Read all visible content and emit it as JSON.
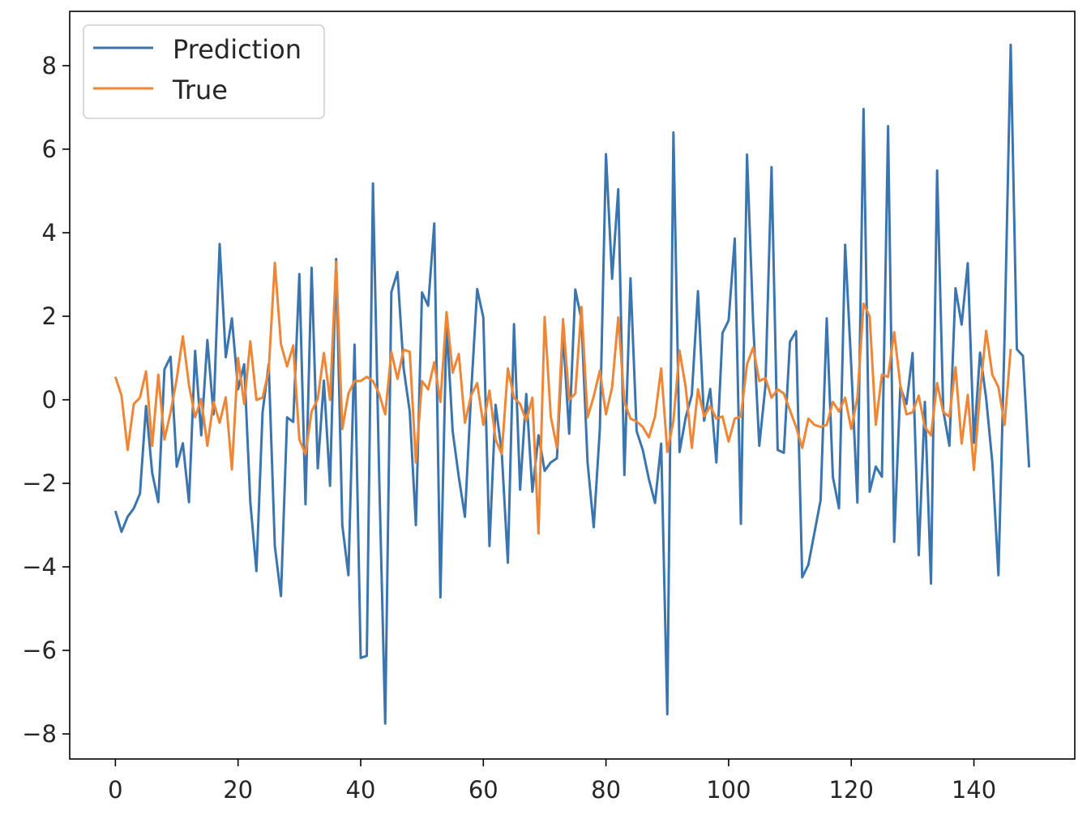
{
  "chart_data": {
    "type": "line",
    "title": "",
    "xlabel": "",
    "ylabel": "",
    "xlim": [
      -7.45,
      156.45
    ],
    "ylim": [
      -8.6,
      9.3
    ],
    "xticks": [
      0,
      20,
      40,
      60,
      80,
      100,
      120,
      140
    ],
    "yticks": [
      -8,
      -6,
      -4,
      -2,
      0,
      2,
      4,
      6,
      8
    ],
    "grid": false,
    "legend_position": "top-left",
    "series": [
      {
        "name": "Prediction",
        "color": "#3a75af",
        "values": [
          -2.66,
          -3.16,
          -2.8,
          -2.6,
          -2.25,
          -0.15,
          -1.75,
          -2.45,
          0.73,
          1.03,
          -1.6,
          -1.04,
          -2.45,
          1.17,
          -0.85,
          1.43,
          -0.35,
          3.73,
          1.02,
          1.95,
          0.25,
          0.85,
          -2.45,
          -4.1,
          -0.3,
          0.85,
          -3.5,
          -4.7,
          -0.42,
          -0.53,
          3.01,
          -2.5,
          3.16,
          -1.64,
          0.46,
          -2.06,
          3.37,
          -3.0,
          -4.2,
          1.32,
          -6.18,
          -6.13,
          5.18,
          -1.72,
          -7.75,
          2.58,
          3.06,
          0.76,
          -0.28,
          -3.0,
          2.57,
          2.25,
          4.22,
          -4.73,
          1.86,
          -0.75,
          -1.85,
          -2.8,
          0.14,
          2.65,
          1.97,
          -3.5,
          -0.12,
          -1.25,
          -3.9,
          1.81,
          -2.15,
          0.14,
          -2.2,
          -0.85,
          -1.7,
          -1.5,
          -1.4,
          1.58,
          -0.81,
          2.64,
          1.92,
          -1.5,
          -3.05,
          -0.7,
          5.88,
          2.9,
          5.04,
          -1.8,
          2.91,
          -0.75,
          -1.2,
          -1.9,
          -2.47,
          -1.05,
          -7.53,
          6.4,
          -1.25,
          -0.42,
          0.12,
          2.6,
          -0.5,
          0.26,
          -1.5,
          1.6,
          1.9,
          3.86,
          -2.97,
          5.87,
          1.85,
          -1.1,
          0.33,
          5.57,
          -1.2,
          -1.27,
          1.39,
          1.64,
          -4.25,
          -3.95,
          -3.18,
          -2.4,
          1.95,
          -1.85,
          -2.6,
          3.71,
          0.8,
          -2.46,
          6.96,
          -2.2,
          -1.6,
          -1.84,
          6.55,
          -3.4,
          0.3,
          -0.1,
          1.12,
          -3.72,
          -0.05,
          -4.4,
          5.49,
          -0.25,
          -1.1,
          2.67,
          1.8,
          3.27,
          -1.03,
          1.13,
          0.03,
          -1.5,
          -4.2,
          1.5,
          8.5,
          1.21,
          1.05,
          -1.62
        ]
      },
      {
        "name": "True",
        "color": "#ef8636",
        "values": [
          0.55,
          0.1,
          -1.2,
          -0.1,
          0.05,
          0.68,
          -1.1,
          0.6,
          -0.95,
          -0.3,
          0.5,
          1.52,
          0.35,
          -0.42,
          0.02,
          -1.1,
          -0.05,
          -0.55,
          0.06,
          -1.67,
          1.0,
          -0.1,
          1.4,
          0.0,
          0.05,
          0.7,
          3.28,
          1.33,
          0.8,
          1.3,
          -0.95,
          -1.3,
          -0.28,
          0.02,
          1.12,
          0.0,
          3.3,
          -0.7,
          0.15,
          0.45,
          0.45,
          0.55,
          0.45,
          0.15,
          -0.35,
          1.15,
          0.5,
          1.2,
          1.15,
          -1.5,
          0.45,
          0.25,
          0.9,
          -0.05,
          2.1,
          0.65,
          1.1,
          -0.55,
          0.1,
          0.4,
          -0.6,
          0.22,
          -0.95,
          -1.3,
          0.75,
          0.05,
          -0.1,
          -0.5,
          0.05,
          -3.2,
          1.98,
          -0.4,
          -1.15,
          1.93,
          0.0,
          0.15,
          2.22,
          -0.42,
          0.08,
          0.7,
          -0.35,
          0.3,
          1.97,
          -0.05,
          -0.45,
          -0.52,
          -0.65,
          -0.9,
          -0.4,
          0.75,
          -1.25,
          -0.5,
          1.18,
          0.3,
          -1.15,
          0.25,
          -0.4,
          -0.15,
          -0.45,
          -0.4,
          -1.0,
          -0.45,
          -0.4,
          0.85,
          1.25,
          0.45,
          0.52,
          0.05,
          0.25,
          0.15,
          -0.25,
          -0.65,
          -1.15,
          -0.45,
          -0.6,
          -0.65,
          -0.6,
          -0.05,
          -0.28,
          0.05,
          -0.7,
          0.05,
          2.3,
          2.0,
          -0.6,
          0.6,
          0.55,
          1.62,
          0.35,
          -0.35,
          -0.3,
          0.1,
          -0.65,
          -0.85,
          0.4,
          -0.3,
          -0.4,
          0.78,
          -1.05,
          0.12,
          -1.68,
          0.18,
          1.65,
          0.6,
          0.3,
          -0.6,
          1.22
        ]
      }
    ]
  }
}
